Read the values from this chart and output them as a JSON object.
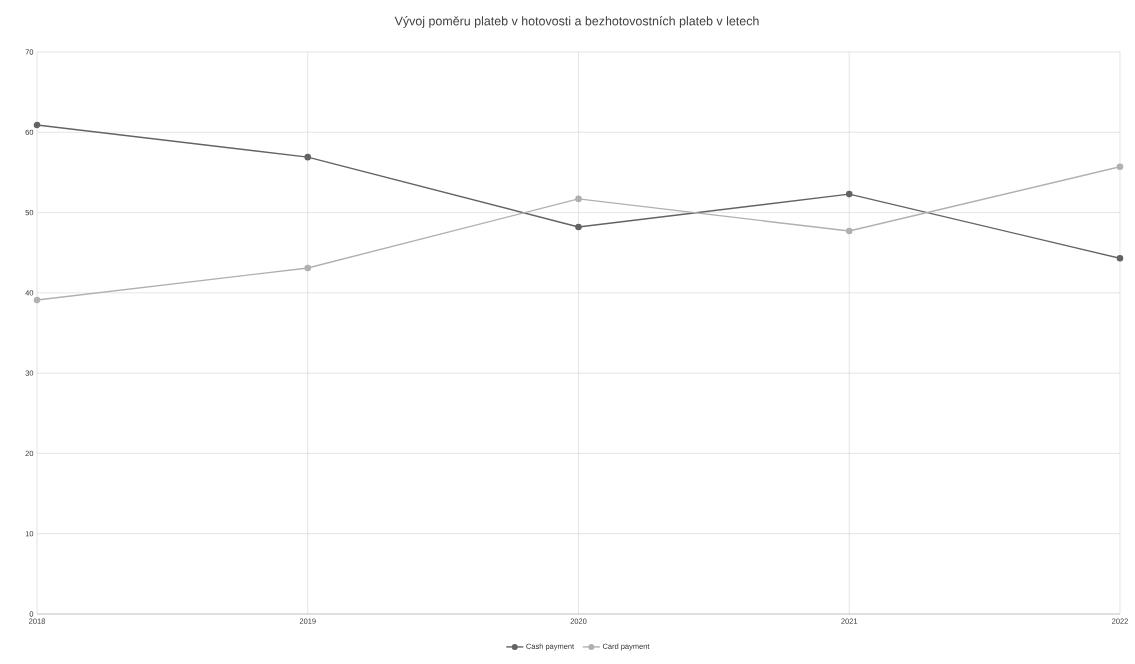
{
  "chart_data": {
    "type": "line",
    "title": "Vývoj poměru plateb v hotovosti a bezhotovostních plateb v letech",
    "categories": [
      "2018",
      "2019",
      "2020",
      "2021",
      "2022"
    ],
    "series": [
      {
        "name": "Cash payment",
        "color": "#636363",
        "values": [
          60.9,
          56.9,
          48.2,
          52.3,
          44.3
        ]
      },
      {
        "name": "Card payment",
        "color": "#b0b0b0",
        "values": [
          39.1,
          43.1,
          51.7,
          47.7,
          55.7
        ]
      }
    ],
    "ylim": [
      0,
      70
    ],
    "yticks": [
      0,
      10,
      20,
      30,
      40,
      50,
      60,
      70
    ],
    "grid": true,
    "legend": "bottom",
    "marker": "circle",
    "line_style": "solid"
  }
}
